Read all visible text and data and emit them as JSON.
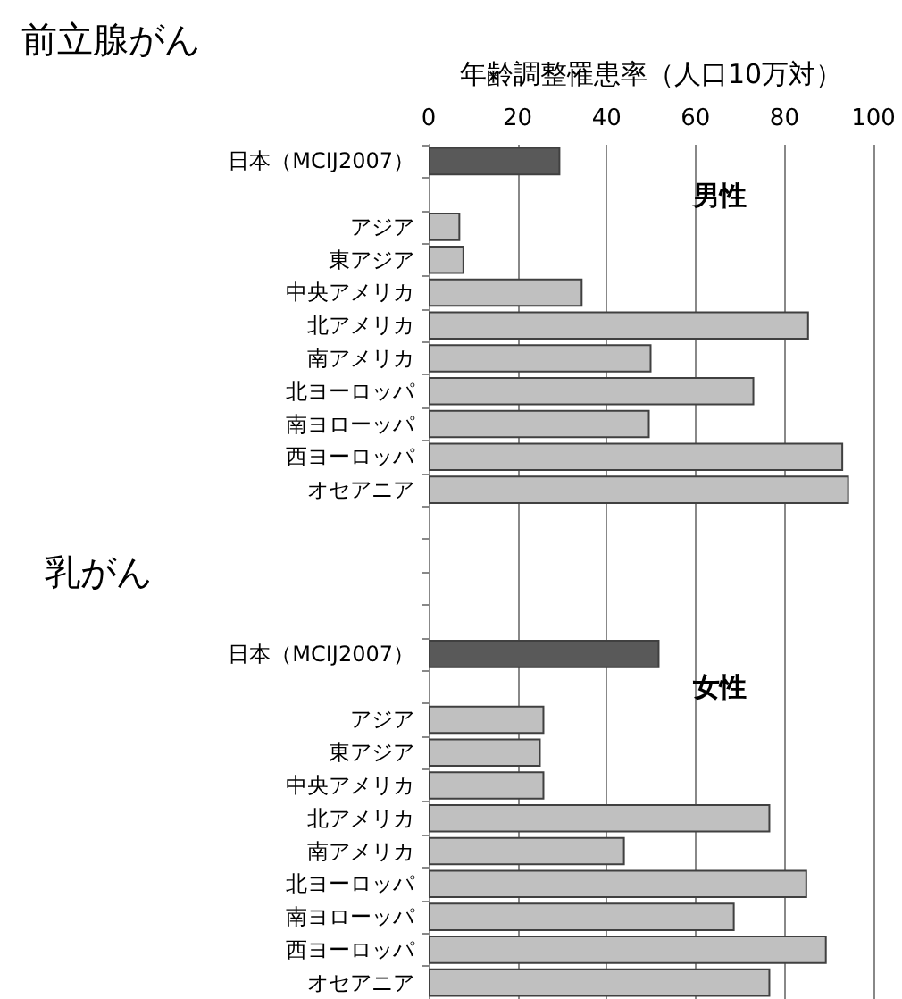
{
  "chart_data": {
    "type": "bar",
    "orientation": "horizontal",
    "title": "前立腺がん",
    "xlabel": "年齢調整罹患率（人口10万対）",
    "annotations": [
      "乳がん",
      "男性",
      "女性"
    ],
    "categories": [
      "日本（MCIJ2007）",
      null,
      "アジア",
      "東アジア",
      "中央アメリカ",
      "北アメリカ",
      "南アメリカ",
      "北ヨーロッパ",
      "南ヨローッパ",
      "西ヨーロッパ",
      "オセアニア",
      null,
      null,
      null,
      null,
      "日本（MCIJ2007）",
      null,
      "アジア",
      "東アジア",
      "中央アメリカ",
      "北アメリカ",
      "南アメリカ",
      "北ヨーロッパ",
      "南ヨローッパ",
      "西ヨーロッパ",
      "オセアニア"
    ],
    "values": [
      29.6,
      null,
      7.1,
      8.0,
      34.6,
      85.5,
      50.1,
      73.2,
      49.7,
      93.2,
      94.5,
      null,
      null,
      null,
      null,
      51.9,
      null,
      26.0,
      25.2,
      26.0,
      76.8,
      44.1,
      85.1,
      68.8,
      89.5,
      76.8
    ],
    "colors": [
      "#595959",
      null,
      "#c0c0c0",
      "#c0c0c0",
      "#c0c0c0",
      "#c0c0c0",
      "#c0c0c0",
      "#c0c0c0",
      "#c0c0c0",
      "#c0c0c0",
      "#c0c0c0",
      null,
      null,
      null,
      null,
      "#595959",
      null,
      "#c0c0c0",
      "#c0c0c0",
      "#c0c0c0",
      "#c0c0c0",
      "#c0c0c0",
      "#c0c0c0",
      "#c0c0c0",
      "#c0c0c0",
      "#c0c0c0"
    ],
    "xlim": [
      0,
      100
    ],
    "xticks": [
      0,
      20,
      40,
      60,
      80,
      100
    ],
    "grid": "x"
  }
}
